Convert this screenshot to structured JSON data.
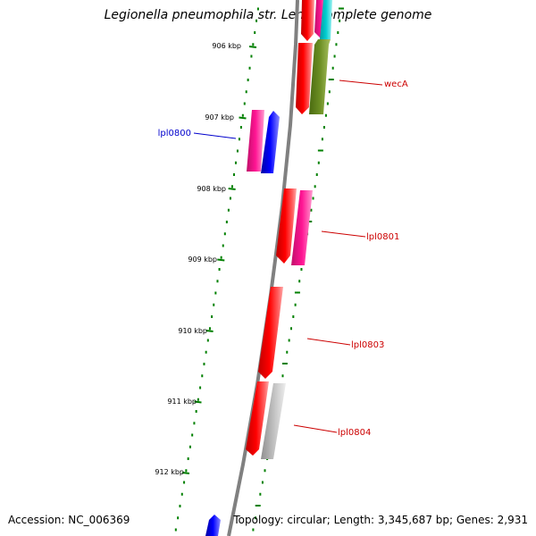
{
  "title": "Legionella pneumophila str. Lens, complete genome",
  "footer": {
    "accession": "Accession: NC_006369",
    "summary": "Topology: circular; Length: 3,345,687 bp; Genes: 2,931"
  },
  "ruler": {
    "ticks": [
      "906 kbp",
      "907 kbp",
      "908 kbp",
      "909 kbp",
      "910 kbp",
      "911 kbp",
      "912 kbp"
    ]
  },
  "gene_labels": [
    {
      "name": "wecA",
      "color": "#cc0000"
    },
    {
      "name": "lpl0800",
      "color": "#0000cc"
    },
    {
      "name": "lpl0801",
      "color": "#cc0000"
    },
    {
      "name": "lpl0803",
      "color": "#cc0000"
    },
    {
      "name": "lpl0804",
      "color": "#cc0000"
    }
  ],
  "colors": {
    "backbone": "#808080",
    "tick": "#008000",
    "gene_red": "#ff0000",
    "gene_pink": "#ff1493",
    "gene_blue": "#0000ff",
    "gene_olive": "#6b8e23",
    "gene_cyan": "#00ced1",
    "gene_grey": "#bfbfbf"
  }
}
